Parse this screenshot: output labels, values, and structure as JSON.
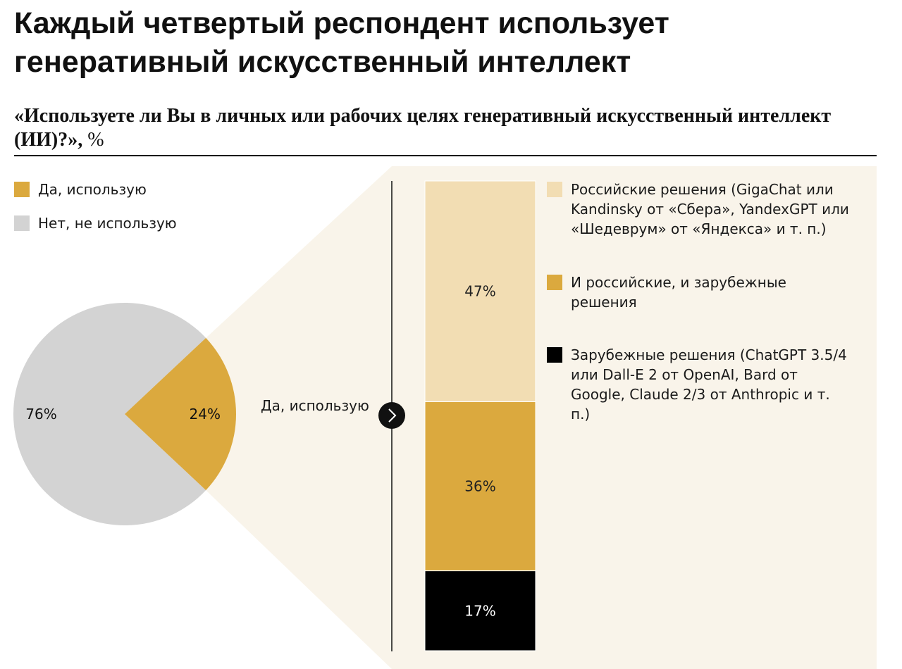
{
  "title": "Каждый четвертый респондент использует генеративный искусственный интеллект",
  "subtitle": "«Используете ли Вы в личных или рабочих целях генеративный искусственный интеллект (ИИ)?»,",
  "unit": "%",
  "callout": "Да, используем",
  "colors": {
    "yes": "#dba93e",
    "no": "#d3d3d3",
    "russian": "#f2ddb3",
    "both": "#dba93e",
    "foreign": "#000000",
    "panel": "#f9f4ea"
  },
  "icons": {
    "expand": "chevron-right-icon"
  },
  "chart_data": [
    {
      "type": "pie",
      "slices": [
        {
          "name": "Да, использую",
          "value": 24,
          "label": "24%"
        },
        {
          "name": "Нет, не использую",
          "value": 76,
          "label": "76%"
        }
      ]
    },
    {
      "type": "bar",
      "stacked": true,
      "categories": [
        "Да, использую"
      ],
      "series": [
        {
          "name": "Российские решения (GigaChat или Kandinsky от «Сбера», YandexGPT или «Шедеврум» от «Яндекса» и т. п.)",
          "values": [
            47
          ],
          "label": "47%"
        },
        {
          "name": "И российские, и зарубежные решения",
          "values": [
            36
          ],
          "label": "36%"
        },
        {
          "name": "Зарубежные решения (ChatGPT 3.5/4 или Dall-E 2 от OpenAI, Bard от Google, Claude 2/3 от Anthropic и т. п.)",
          "values": [
            17
          ],
          "label": "17%"
        }
      ],
      "ylim": [
        0,
        100
      ]
    }
  ]
}
